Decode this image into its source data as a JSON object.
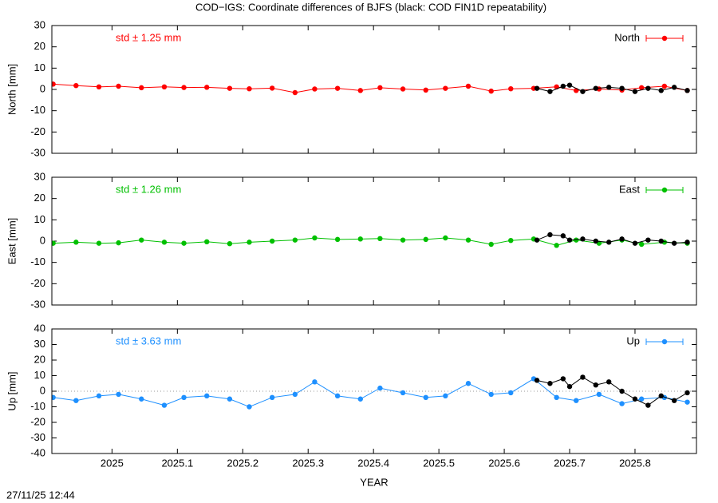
{
  "title": "COD−IGS: Coordinate differences of BJFS (black: COD FIN1D repeatability)",
  "timestamp": "27/11/25 12:44",
  "chart_data": [
    {
      "type": "line",
      "ylabel": "North [mm]",
      "annotation": "std ± 1.25 mm",
      "xlim": [
        2024.908,
        2025.894
      ],
      "xticks": [
        2025,
        2025.1,
        2025.2,
        2025.3,
        2025.4,
        2025.5,
        2025.6,
        2025.7,
        2025.8
      ],
      "ylim": [
        -30,
        30
      ],
      "yticks": [
        -30,
        -20,
        -10,
        0,
        10,
        20,
        30
      ],
      "zero_line": false,
      "series": [
        {
          "name": "North",
          "color": "#ff0000",
          "x": [
            2024.91,
            2024.945,
            2024.98,
            2025.01,
            2025.045,
            2025.08,
            2025.11,
            2025.145,
            2025.18,
            2025.21,
            2025.245,
            2025.28,
            2025.31,
            2025.345,
            2025.38,
            2025.41,
            2025.445,
            2025.48,
            2025.51,
            2025.545,
            2025.58,
            2025.61,
            2025.645,
            2025.68,
            2025.71,
            2025.745,
            2025.78,
            2025.81,
            2025.845,
            2025.88
          ],
          "values": [
            2.5,
            1.8,
            1.2,
            1.5,
            0.8,
            1.2,
            0.9,
            1.0,
            0.5,
            0.3,
            0.6,
            -1.5,
            0.2,
            0.5,
            -0.5,
            0.8,
            0.2,
            -0.3,
            0.5,
            1.5,
            -0.8,
            0.3,
            0.5,
            1.2,
            -0.5,
            0.2,
            -0.3,
            0.8,
            1.5,
            -0.5
          ]
        },
        {
          "color": "#000000",
          "x": [
            2025.65,
            2025.67,
            2025.69,
            2025.7,
            2025.72,
            2025.74,
            2025.76,
            2025.78,
            2025.8,
            2025.82,
            2025.84,
            2025.86,
            2025.88
          ],
          "values": [
            0.5,
            -1,
            1.5,
            2,
            -1,
            0.5,
            1,
            0.5,
            -1,
            0.5,
            -0.5,
            1,
            -0.5
          ]
        }
      ]
    },
    {
      "type": "line",
      "ylabel": "East [mm]",
      "annotation": "std ± 1.26 mm",
      "xlim": [
        2024.908,
        2025.894
      ],
      "xticks": [
        2025,
        2025.1,
        2025.2,
        2025.3,
        2025.4,
        2025.5,
        2025.6,
        2025.7,
        2025.8
      ],
      "ylim": [
        -30,
        30
      ],
      "yticks": [
        -30,
        -20,
        -10,
        0,
        10,
        20,
        30
      ],
      "zero_line": false,
      "series": [
        {
          "name": "East",
          "color": "#00c000",
          "x": [
            2024.91,
            2024.945,
            2024.98,
            2025.01,
            2025.045,
            2025.08,
            2025.11,
            2025.145,
            2025.18,
            2025.21,
            2025.245,
            2025.28,
            2025.31,
            2025.345,
            2025.38,
            2025.41,
            2025.445,
            2025.48,
            2025.51,
            2025.545,
            2025.58,
            2025.61,
            2025.645,
            2025.68,
            2025.71,
            2025.745,
            2025.78,
            2025.81,
            2025.845,
            2025.88
          ],
          "values": [
            -1,
            -0.5,
            -1,
            -0.8,
            0.5,
            -0.5,
            -1,
            -0.3,
            -1.2,
            -0.5,
            0,
            0.5,
            1.5,
            0.8,
            1,
            1.2,
            0.5,
            0.8,
            1.5,
            0.5,
            -1.5,
            0.3,
            1,
            -2,
            0.5,
            -1,
            0.5,
            -1.5,
            -0.5,
            -1
          ]
        },
        {
          "color": "#000000",
          "x": [
            2025.65,
            2025.67,
            2025.69,
            2025.7,
            2025.72,
            2025.74,
            2025.76,
            2025.78,
            2025.8,
            2025.82,
            2025.84,
            2025.86,
            2025.88
          ],
          "values": [
            0.5,
            3,
            2.5,
            0.5,
            1,
            0,
            -0.5,
            1,
            -1,
            0.5,
            0,
            -1,
            -0.5
          ]
        }
      ]
    },
    {
      "type": "line",
      "ylabel": "Up [mm]",
      "annotation": "std ± 3.63 mm",
      "xlabel": "YEAR",
      "xlim": [
        2024.908,
        2025.894
      ],
      "xticks": [
        2025,
        2025.1,
        2025.2,
        2025.3,
        2025.4,
        2025.5,
        2025.6,
        2025.7,
        2025.8
      ],
      "ylim": [
        -40,
        40
      ],
      "yticks": [
        -40,
        -30,
        -20,
        -10,
        0,
        10,
        20,
        30,
        40
      ],
      "zero_line": true,
      "series": [
        {
          "name": "Up",
          "color": "#1e90ff",
          "x": [
            2024.91,
            2024.945,
            2024.98,
            2025.01,
            2025.045,
            2025.08,
            2025.11,
            2025.145,
            2025.18,
            2025.21,
            2025.245,
            2025.28,
            2025.31,
            2025.345,
            2025.38,
            2025.41,
            2025.445,
            2025.48,
            2025.51,
            2025.545,
            2025.58,
            2025.61,
            2025.645,
            2025.68,
            2025.71,
            2025.745,
            2025.78,
            2025.81,
            2025.845,
            2025.88
          ],
          "values": [
            -4,
            -6,
            -3,
            -2,
            -5,
            -9,
            -4,
            -3,
            -5,
            -10,
            -4,
            -2,
            6,
            -3,
            -5,
            2,
            -1,
            -4,
            -3,
            5,
            -2,
            -1,
            8,
            -4,
            -6,
            -2,
            -8,
            -5,
            -4,
            -7
          ]
        },
        {
          "color": "#000000",
          "x": [
            2025.65,
            2025.67,
            2025.69,
            2025.7,
            2025.72,
            2025.74,
            2025.76,
            2025.78,
            2025.8,
            2025.82,
            2025.84,
            2025.86,
            2025.88
          ],
          "values": [
            7,
            5,
            8,
            3,
            9,
            4,
            6,
            0,
            -5,
            -9,
            -3,
            -6,
            -1
          ]
        }
      ]
    }
  ]
}
